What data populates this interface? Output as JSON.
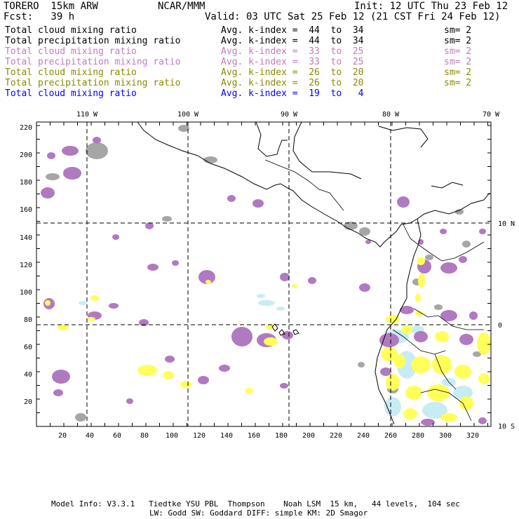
{
  "header": {
    "model": "TORERO  15km ARW",
    "org": "NCAR/MMM",
    "init": "Init: 12 UTC Thu 23 Feb 12",
    "fcst": "Fcst:   39 h",
    "valid": "Valid: 03 UTC Sat 25 Feb 12 (21 CST Fri 24 Feb 12)"
  },
  "legend": [
    {
      "field": "Total cloud mixing ratio",
      "k": "Avg. k-index =  44  to  34",
      "sm": "sm= 2",
      "color": "#000000"
    },
    {
      "field": "Total precipitation mixing ratio",
      "k": "Avg. k-index =  44  to  34",
      "sm": "sm= 2",
      "color": "#000000"
    },
    {
      "field": "Total cloud mixing ratio",
      "k": "Avg. k-index =  33  to  25",
      "sm": "sm= 2",
      "color": "#c27ac2"
    },
    {
      "field": "Total precipitation mixing ratio",
      "k": "Avg. k-index =  33  to  25",
      "sm": "sm= 2",
      "color": "#c27ac2"
    },
    {
      "field": "Total cloud mixing ratio",
      "k": "Avg. k-index =  26  to  20",
      "sm": "sm= 2",
      "color": "#8a8a00"
    },
    {
      "field": "Total precipitation mixing ratio",
      "k": "Avg. k-index =  26  to  20",
      "sm": "sm= 2",
      "color": "#8a8a00"
    },
    {
      "field": "Total cloud mixing ratio",
      "k": "Avg. k-index =  19  to   4",
      "sm": "",
      "color": "#0000ff"
    }
  ],
  "map": {
    "lon_labels": [
      "110 W",
      "100 W",
      "90 W",
      "80 W",
      "70 W"
    ],
    "lat_labels": [
      "10 N",
      "0",
      "10 S"
    ],
    "y_ticks": [
      "220",
      "200",
      "180",
      "160",
      "140",
      "120",
      "100",
      "80",
      "60",
      "40",
      "20"
    ],
    "x_ticks": [
      "20",
      "40",
      "60",
      "80",
      "100",
      "120",
      "140",
      "160",
      "180",
      "200",
      "220",
      "240",
      "260",
      "280",
      "300",
      "320"
    ],
    "colors": {
      "gray": "#a6a6a6",
      "purple": "#b07ac0",
      "yellow": "#ffff5a",
      "cyan": "#c8ecf4"
    }
  },
  "footer": {
    "line1": "Model Info: V3.3.1   Tiedtke YSU PBL  Thompson    Noah LSM  15 km,   44 levels,  104 sec",
    "line2": "LW: Godd SW: Goddard DIFF: simple KM: 2D Smagor"
  }
}
